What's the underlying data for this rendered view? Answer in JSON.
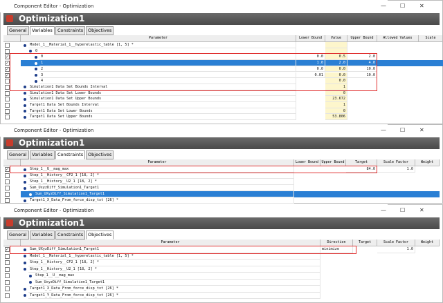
{
  "panels": [
    {
      "window_title": "Component Editor - Optimization",
      "header": "Optimization1",
      "tabs": [
        "General",
        "Variables",
        "Constraints",
        "Objectives"
      ],
      "active_tab": 1,
      "columns": [
        "Parameter",
        "Lower Bound",
        "Value",
        "Upper Bound",
        "Allowed Values",
        "Scale"
      ],
      "rows": [
        {
          "cells": [
            "Model_1__Material_1__hyperelastic_table [1, 5] *",
            null,
            null,
            null,
            null,
            null
          ],
          "checked": false
        },
        {
          "cells": [
            "0",
            null,
            null,
            null,
            null,
            null
          ],
          "checked": false
        },
        {
          "cells": [
            "0",
            "0.0",
            "0.5",
            "2.0",
            null,
            null
          ],
          "checked": true
        },
        {
          "cells": [
            "1",
            "1.0",
            "2.0",
            "4.0",
            null,
            null
          ],
          "checked": true,
          "selected": true
        },
        {
          "cells": [
            "2",
            "0.0",
            "0.0",
            "10.0",
            null,
            null
          ],
          "checked": true
        },
        {
          "cells": [
            "3",
            "0.01",
            "0.0",
            "10.0",
            null,
            null
          ],
          "checked": true
        },
        {
          "cells": [
            "4",
            null,
            "0.0",
            null,
            null,
            null
          ],
          "checked": false
        },
        {
          "cells": [
            "Simulation1 Data Set Bounds Interval",
            null,
            "1",
            null,
            null,
            null
          ],
          "checked": false
        },
        {
          "cells": [
            "Simulation1 Data Set Lower Bounds",
            null,
            "0",
            null,
            null,
            null
          ],
          "checked": false
        },
        {
          "cells": [
            "Simulation1 Data Set Upper Bounds",
            null,
            "23.672",
            null,
            null,
            null
          ],
          "checked": false
        },
        {
          "cells": [
            "Target1 Data Set Bounds Interval",
            null,
            "1",
            null,
            null,
            null
          ],
          "checked": false
        },
        {
          "cells": [
            "Target1 Data Set Lower Bounds",
            null,
            "0",
            null,
            null,
            null
          ],
          "checked": false
        },
        {
          "cells": [
            "Target1 Data Set Upper Bounds",
            null,
            "53.806",
            null,
            null,
            null
          ],
          "checked": false
        }
      ]
    },
    {
      "window_title": "Component Editor - Optimization",
      "header": "Optimization1",
      "tabs": [
        "General",
        "Variables",
        "Constraints",
        "Objectives"
      ],
      "active_tab": 2,
      "columns": [
        "Parameter",
        "Lower Bound",
        "Upper Bound",
        "Target",
        "Scale Factor",
        "Weight"
      ],
      "rows": [
        {
          "cells": [
            "Step_1__U__mag_max",
            null,
            null,
            "84.0",
            "1.0",
            null
          ],
          "checked": true
        },
        {
          "cells": [
            "Step_1__History__CF2_1 [18, 2] *",
            null,
            null,
            null,
            null,
            null
          ],
          "checked": false
        },
        {
          "cells": [
            "Step_1__History__U2_1 [18, 2] *",
            null,
            null,
            null,
            null,
            null
          ],
          "checked": false
        },
        {
          "cells": [
            "Sum_UxyzDiff_Simulation1_Target1",
            null,
            null,
            null,
            null,
            null
          ],
          "checked": false
        },
        {
          "cells": [
            "Sum_UXyzDiff_Simulation1_Target1",
            null,
            null,
            null,
            null,
            null
          ],
          "checked": false,
          "selected": true
        },
        {
          "cells": [
            "Target1_X_Data_From_force_disp_txt [26] *",
            null,
            null,
            null,
            null,
            null
          ],
          "checked": false
        }
      ]
    },
    {
      "window_title": "Component Editor - Optimization",
      "header": "Optimization1",
      "tabs": [
        "General",
        "Variables",
        "Constraints",
        "Objectives"
      ],
      "active_tab": 3,
      "columns": [
        "Parameter",
        "Direction",
        "Target",
        "Scale Factor",
        "Weight"
      ],
      "rows": [
        {
          "cells": [
            "Sum_UXyzDiff_Simulation1_Target1",
            "minimize",
            null,
            "1.0",
            null
          ],
          "checked": true
        },
        {
          "cells": [
            "Model_1__Material_1__hyperelastic_table [1, 5] *",
            null,
            null,
            null,
            null
          ],
          "checked": false
        },
        {
          "cells": [
            "Step_1__History__CF2_1 [18, 2] *",
            null,
            null,
            null,
            null
          ],
          "checked": false
        },
        {
          "cells": [
            "Step_1__History__U2_1 [18, 2] *",
            null,
            null,
            null,
            null
          ],
          "checked": false
        },
        {
          "cells": [
            "Step_1__U__mag_max",
            null,
            null,
            null,
            null
          ],
          "checked": false
        },
        {
          "cells": [
            "Sum_UxyzDiff_Simulation1_Target1",
            null,
            null,
            null,
            null
          ],
          "checked": false
        },
        {
          "cells": [
            "Target1_X_Data_From_force_disp_txt [26] *",
            null,
            null,
            null,
            null
          ],
          "checked": false
        },
        {
          "cells": [
            "Target1_Y_Data_From_force_disp_txt [26] *",
            null,
            null,
            null,
            null
          ],
          "checked": false
        }
      ]
    }
  ]
}
